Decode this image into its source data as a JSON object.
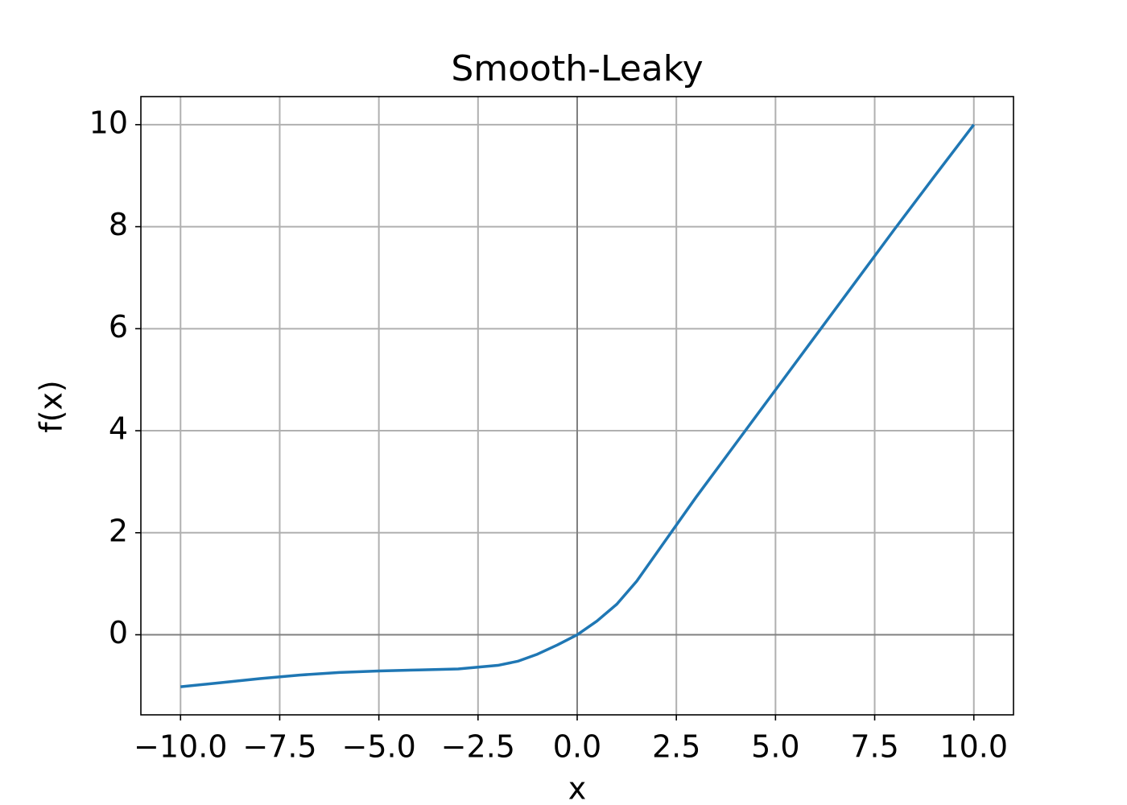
{
  "chart_data": {
    "type": "line",
    "title": "Smooth-Leaky",
    "x_label": "x",
    "y_label": "f(x)",
    "x": [
      -10,
      -9,
      -8,
      -7,
      -6,
      -5,
      -4,
      -3,
      -2,
      -1.5,
      -1,
      -0.5,
      0,
      0.5,
      1,
      1.5,
      2,
      3,
      4,
      5,
      6,
      7,
      8,
      9,
      10
    ],
    "values": [
      -1.02,
      -0.94,
      -0.86,
      -0.79,
      -0.74,
      -0.71,
      -0.69,
      -0.67,
      -0.6,
      -0.52,
      -0.38,
      -0.2,
      0,
      0.27,
      0.6,
      1.05,
      1.6,
      2.7,
      3.75,
      4.8,
      5.85,
      6.9,
      7.95,
      8.98,
      10
    ],
    "color": "#1f77b4",
    "xlim": [
      -11,
      11
    ],
    "ylim": [
      -1.57,
      10.55
    ],
    "xticks": [
      {
        "value": -10,
        "label": "−10.0"
      },
      {
        "value": -7.5,
        "label": "−7.5"
      },
      {
        "value": -5,
        "label": "−5.0"
      },
      {
        "value": -2.5,
        "label": "−2.5"
      },
      {
        "value": 0,
        "label": "0.0"
      },
      2.5,
      {
        "value": 5,
        "label": "5.0"
      },
      7.5,
      {
        "value": 10,
        "label": "10.0"
      }
    ],
    "yticks": [
      0,
      2,
      4,
      6,
      8,
      10
    ],
    "grid": true,
    "zero_lines": true
  }
}
